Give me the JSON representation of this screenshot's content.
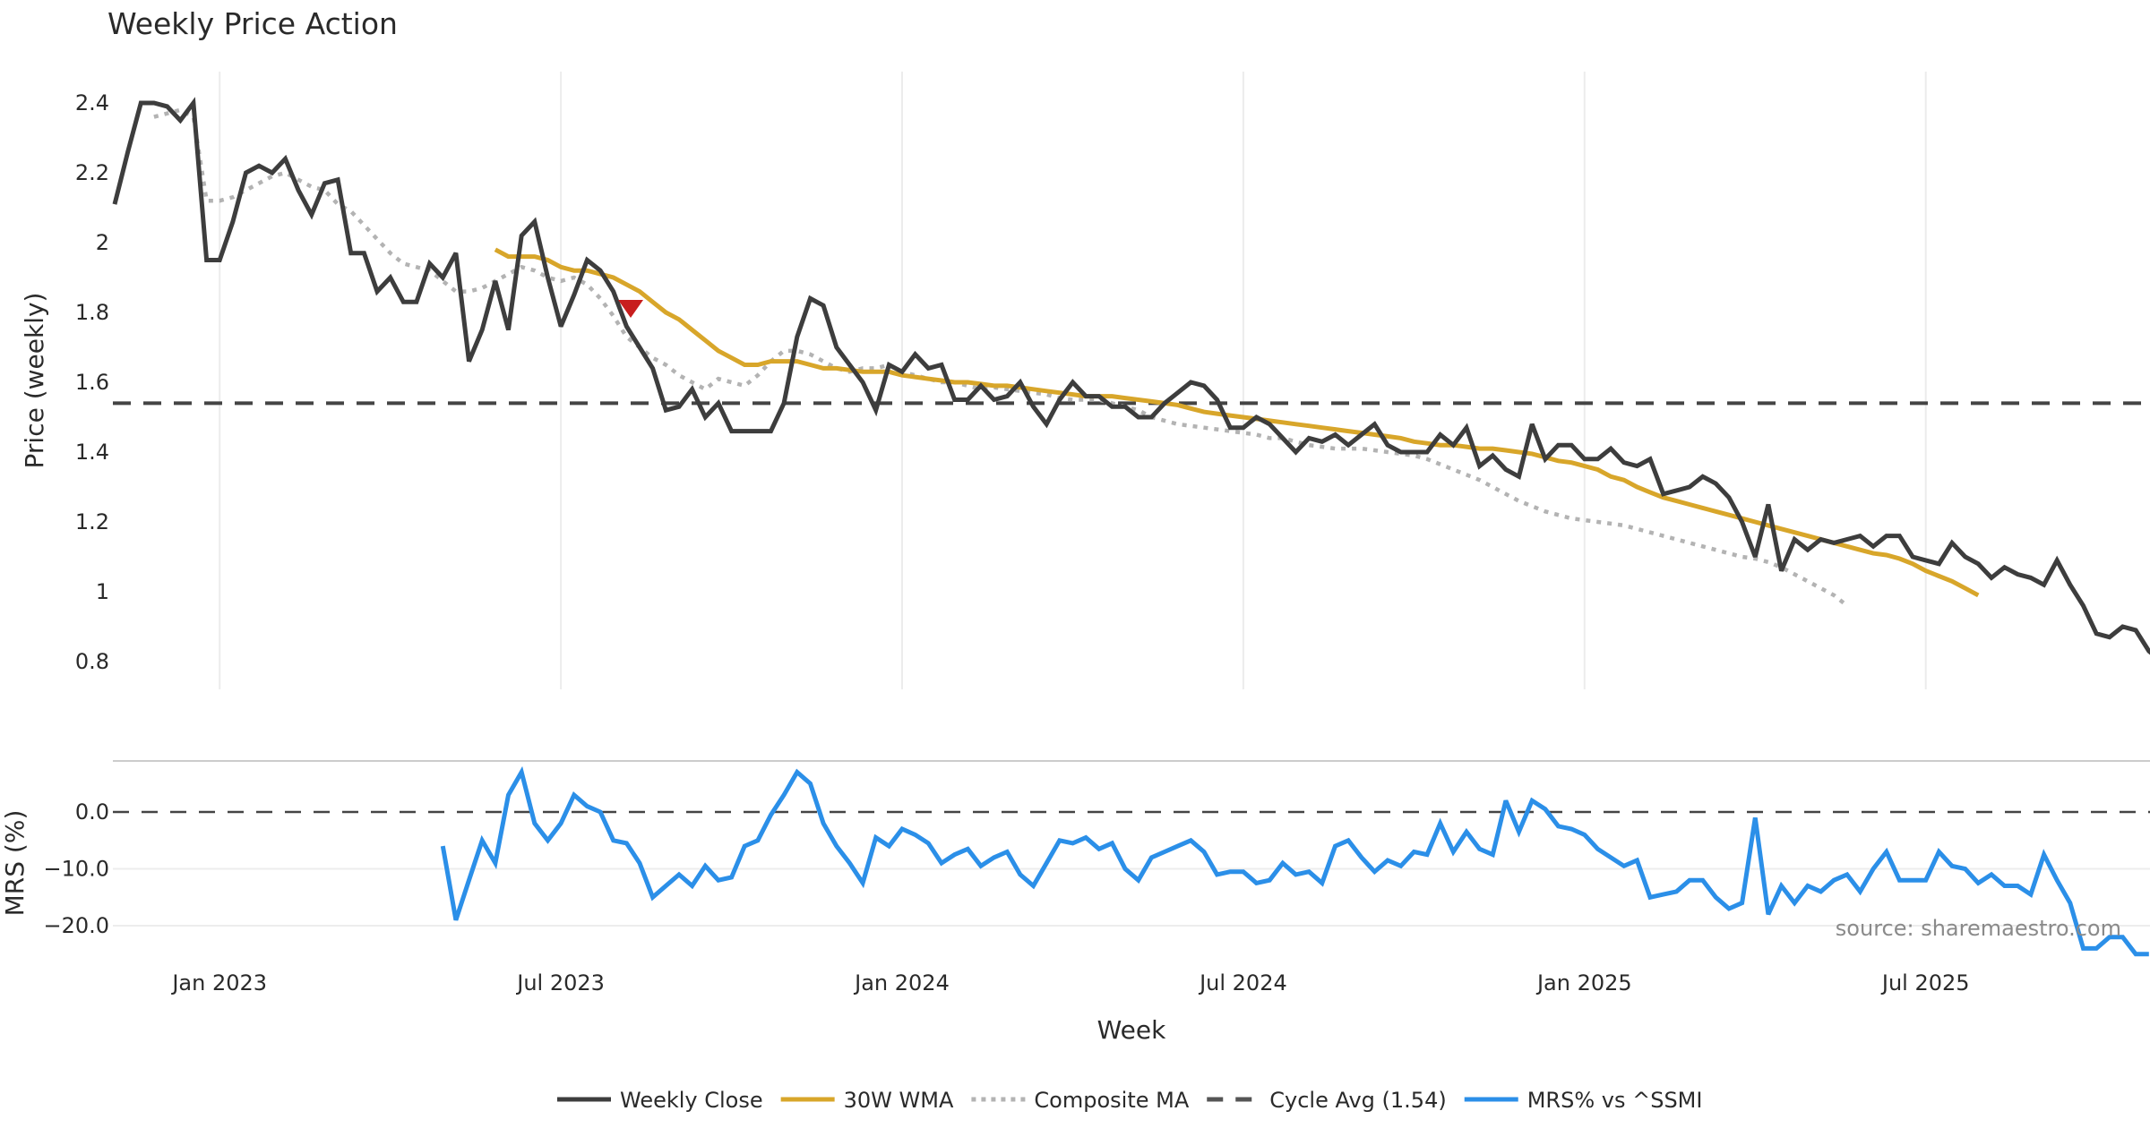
{
  "chart_data": [
    {
      "type": "line",
      "title": "Weekly Price Action",
      "panel": "price",
      "ylabel": "Price (weekly)",
      "xlabel": "",
      "ylim": [
        0.72,
        2.5
      ],
      "yticks": [
        0.8,
        1,
        1.2,
        1.4,
        1.6,
        1.8,
        2,
        2.2,
        2.4
      ],
      "ytick_labels": [
        "0.8",
        "1",
        "1.2",
        "1.4",
        "1.6",
        "1.8",
        "2",
        "2.2",
        "2.4"
      ],
      "grid": "vertical",
      "start_date": "2022-11-04",
      "frequency": "weekly",
      "series": [
        {
          "name": "Weekly Close",
          "color": "#3d3d3d",
          "style": "solid",
          "values": [
            2.11,
            2.26,
            2.4,
            2.4,
            2.39,
            2.35,
            2.4,
            1.95,
            1.95,
            2.06,
            2.2,
            2.22,
            2.2,
            2.24,
            2.15,
            2.08,
            2.17,
            2.18,
            1.97,
            1.97,
            1.86,
            1.9,
            1.83,
            1.83,
            1.94,
            1.9,
            1.97,
            1.66,
            1.75,
            1.89,
            1.75,
            2.02,
            2.06,
            1.9,
            1.76,
            1.85,
            1.95,
            1.92,
            1.86,
            1.76,
            1.7,
            1.64,
            1.52,
            1.53,
            1.58,
            1.5,
            1.54,
            1.46,
            1.46,
            1.46,
            1.46,
            1.54,
            1.73,
            1.84,
            1.82,
            1.7,
            1.65,
            1.6,
            1.52,
            1.65,
            1.63,
            1.68,
            1.64,
            1.65,
            1.55,
            1.55,
            1.59,
            1.55,
            1.56,
            1.6,
            1.53,
            1.48,
            1.55,
            1.6,
            1.56,
            1.56,
            1.53,
            1.53,
            1.5,
            1.5,
            1.54,
            1.57,
            1.6,
            1.59,
            1.55,
            1.47,
            1.47,
            1.5,
            1.48,
            1.44,
            1.4,
            1.44,
            1.43,
            1.45,
            1.42,
            1.45,
            1.48,
            1.42,
            1.4,
            1.4,
            1.4,
            1.45,
            1.42,
            1.47,
            1.36,
            1.39,
            1.35,
            1.33,
            1.48,
            1.38,
            1.42,
            1.42,
            1.38,
            1.38,
            1.41,
            1.37,
            1.36,
            1.38,
            1.28,
            1.29,
            1.3,
            1.33,
            1.31,
            1.27,
            1.2,
            1.1,
            1.25,
            1.06,
            1.15,
            1.12,
            1.15,
            1.14,
            1.15,
            1.16,
            1.13,
            1.16,
            1.16,
            1.1,
            1.09,
            1.08,
            1.14,
            1.1,
            1.08,
            1.04,
            1.07,
            1.05,
            1.04,
            1.02,
            1.09,
            1.02,
            0.96,
            0.88,
            0.87,
            0.9,
            0.89,
            0.83,
            0.8
          ]
        },
        {
          "name": "30W WMA",
          "color": "#d8a62a",
          "style": "solid",
          "start_index": 29,
          "values": [
            1.98,
            1.96,
            1.96,
            1.96,
            1.95,
            1.93,
            1.92,
            1.92,
            1.91,
            1.9,
            1.88,
            1.86,
            1.83,
            1.8,
            1.78,
            1.75,
            1.72,
            1.69,
            1.67,
            1.65,
            1.65,
            1.66,
            1.66,
            1.66,
            1.65,
            1.64,
            1.64,
            1.635,
            1.63,
            1.63,
            1.63,
            1.62,
            1.615,
            1.61,
            1.605,
            1.6,
            1.6,
            1.595,
            1.59,
            1.59,
            1.585,
            1.58,
            1.575,
            1.57,
            1.565,
            1.56,
            1.56,
            1.56,
            1.555,
            1.55,
            1.545,
            1.54,
            1.535,
            1.525,
            1.515,
            1.51,
            1.505,
            1.5,
            1.495,
            1.49,
            1.485,
            1.48,
            1.475,
            1.47,
            1.465,
            1.46,
            1.455,
            1.45,
            1.445,
            1.44,
            1.43,
            1.425,
            1.42,
            1.42,
            1.415,
            1.41,
            1.41,
            1.405,
            1.4,
            1.395,
            1.385,
            1.375,
            1.37,
            1.36,
            1.35,
            1.33,
            1.32,
            1.3,
            1.285,
            1.27,
            1.26,
            1.25,
            1.24,
            1.23,
            1.22,
            1.21,
            1.2,
            1.19,
            1.18,
            1.17,
            1.16,
            1.15,
            1.14,
            1.13,
            1.12,
            1.11,
            1.105,
            1.095,
            1.08,
            1.06,
            1.045,
            1.03,
            1.01,
            0.99
          ]
        },
        {
          "name": "Composite MA",
          "color": "#b3b3b3",
          "style": "dotted",
          "start_index": 3,
          "values": [
            2.36,
            2.37,
            2.38,
            2.36,
            2.12,
            2.12,
            2.13,
            2.15,
            2.17,
            2.19,
            2.2,
            2.18,
            2.16,
            2.15,
            2.11,
            2.09,
            2.05,
            2.01,
            1.97,
            1.94,
            1.93,
            1.92,
            1.89,
            1.86,
            1.86,
            1.87,
            1.89,
            1.91,
            1.93,
            1.92,
            1.9,
            1.89,
            1.9,
            1.88,
            1.84,
            1.79,
            1.73,
            1.7,
            1.67,
            1.65,
            1.62,
            1.6,
            1.58,
            1.61,
            1.6,
            1.59,
            1.62,
            1.66,
            1.69,
            1.69,
            1.68,
            1.66,
            1.64,
            1.63,
            1.64,
            1.64,
            1.65,
            1.63,
            1.62,
            1.61,
            1.6,
            1.6,
            1.59,
            1.58,
            1.585,
            1.58,
            1.575,
            1.57,
            1.565,
            1.555,
            1.55,
            1.55,
            1.55,
            1.54,
            1.53,
            1.52,
            1.5,
            1.49,
            1.48,
            1.475,
            1.47,
            1.465,
            1.46,
            1.455,
            1.45,
            1.44,
            1.44,
            1.43,
            1.42,
            1.415,
            1.41,
            1.41,
            1.41,
            1.405,
            1.4,
            1.395,
            1.39,
            1.38,
            1.365,
            1.35,
            1.335,
            1.32,
            1.3,
            1.28,
            1.26,
            1.245,
            1.23,
            1.22,
            1.21,
            1.205,
            1.2,
            1.195,
            1.19,
            1.18,
            1.17,
            1.16,
            1.15,
            1.14,
            1.13,
            1.12,
            1.11,
            1.1,
            1.095,
            1.085,
            1.07,
            1.05,
            1.03,
            1.01,
            0.99,
            0.96
          ]
        },
        {
          "name": "Cycle Avg (1.54)",
          "color": "#444444",
          "style": "dashed",
          "constant": 1.54
        }
      ],
      "annotations": [
        {
          "type": "marker",
          "shape": "triangle-down",
          "color": "#c81e1e",
          "index": 40,
          "value": 1.805
        }
      ]
    },
    {
      "type": "line",
      "panel": "mrs",
      "ylabel": "MRS (%)",
      "xlabel": "Week",
      "ylim": [
        -27,
        8
      ],
      "yticks": [
        0,
        -10,
        -20
      ],
      "ytick_labels": [
        "0.0",
        "−10.0",
        "−20.0"
      ],
      "xtick_labels": [
        "Jan 2023",
        "Jul 2023",
        "Jan 2024",
        "Jul 2024",
        "Jan 2025",
        "Jul 2025"
      ],
      "xtick_indices": [
        8,
        34,
        60,
        86,
        112,
        138
      ],
      "grid": "horizontal",
      "series": [
        {
          "name": "MRS% vs ^SSMI",
          "color": "#2b8fe8",
          "style": "solid",
          "start_index": 25,
          "values": [
            -6,
            -19,
            -12,
            -5,
            -9,
            3,
            7,
            -2,
            -5,
            -2,
            3,
            1,
            0,
            -5,
            -5.5,
            -9,
            -15,
            -13,
            -11,
            -13,
            -9.5,
            -12,
            -11.5,
            -6,
            -5,
            -0.5,
            3,
            7,
            5,
            -2,
            -6,
            -9,
            -12.5,
            -4.5,
            -6,
            -3,
            -4,
            -5.5,
            -9,
            -7.5,
            -6.5,
            -9.5,
            -8,
            -7,
            -11,
            -13,
            -9,
            -5,
            -5.5,
            -4.5,
            -6.5,
            -5.5,
            -10,
            -12,
            -8,
            -7,
            -6,
            -5,
            -7,
            -11,
            -10.5,
            -10.5,
            -12.5,
            -12,
            -9,
            -11,
            -10.5,
            -12.5,
            -6,
            -5,
            -8,
            -10.5,
            -8.5,
            -9.5,
            -7,
            -7.5,
            -2,
            -7,
            -3.5,
            -6.5,
            -7.5,
            2,
            -3.5,
            2,
            0.5,
            -2.5,
            -3,
            -4,
            -6.5,
            -8,
            -9.5,
            -8.5,
            -15,
            -14.5,
            -14,
            -12,
            -12,
            -15,
            -17,
            -16,
            -1,
            -18,
            -13,
            -16,
            -13,
            -14,
            -12,
            -11,
            -14,
            -10,
            -7,
            -12,
            -12,
            -12,
            -7,
            -9.5,
            -10,
            -12.5,
            -11,
            -13,
            -13,
            -14.5,
            -7.5,
            -12,
            -16,
            -24,
            -24,
            -22,
            -22,
            -25,
            -25
          ]
        },
        {
          "name": "zero-line",
          "color": "#444444",
          "style": "dashed",
          "constant": 0
        }
      ],
      "annotations": [
        {
          "type": "text",
          "text": "source: sharemaestro.com",
          "placement": "bottom-right"
        }
      ]
    }
  ],
  "legend": {
    "placement": "bottom-center",
    "items": [
      {
        "label": "Weekly Close",
        "color": "#3d3d3d",
        "style": "solid"
      },
      {
        "label": "30W WMA",
        "color": "#d8a62a",
        "style": "solid"
      },
      {
        "label": "Composite MA",
        "color": "#b3b3b3",
        "style": "dotted"
      },
      {
        "label": "Cycle Avg (1.54)",
        "color": "#555555",
        "style": "dashed"
      },
      {
        "label": "MRS% vs ^SSMI",
        "color": "#2b8fe8",
        "style": "solid"
      }
    ]
  },
  "labels": {
    "title": "Weekly Price Action",
    "price_ylabel": "Price (weekly)",
    "mrs_ylabel": "MRS (%)",
    "xlabel": "Week",
    "source": "source: sharemaestro.com"
  }
}
